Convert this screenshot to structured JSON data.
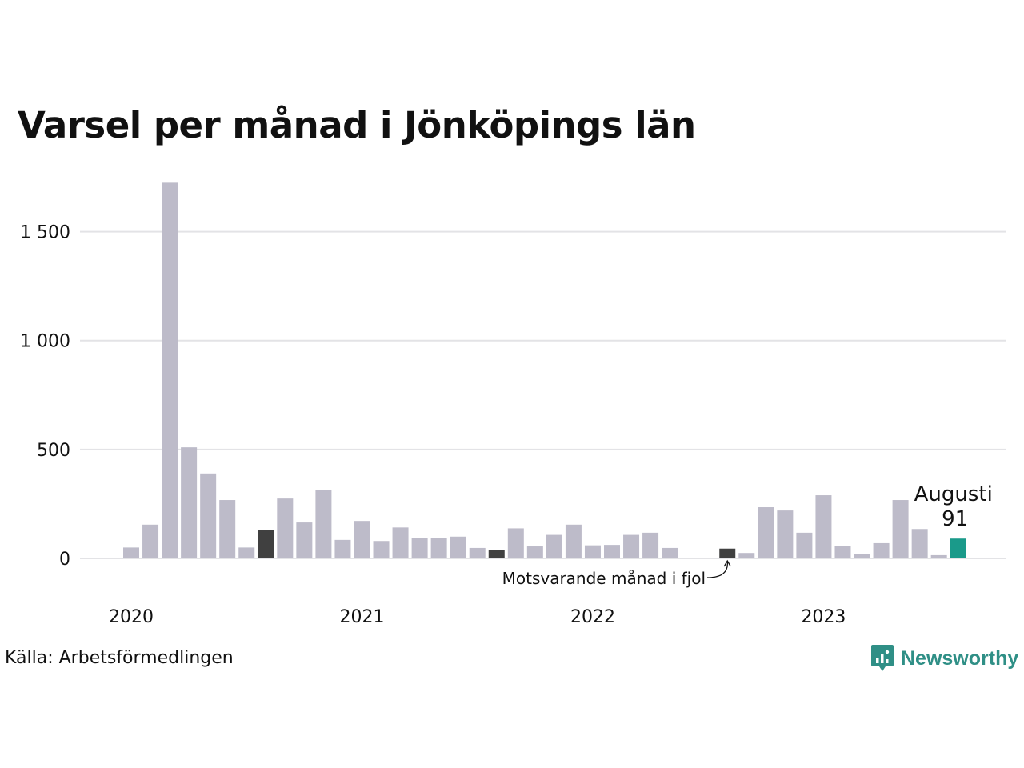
{
  "chart_data": {
    "type": "bar",
    "title": "Varsel per månad i Jönköpings län",
    "source": "Källa: Arbetsförmedlingen",
    "brand": "Newsworthy",
    "ylim": [
      0,
      1730
    ],
    "yticks": [
      {
        "value": 0,
        "label": "0"
      },
      {
        "value": 500,
        "label": "500"
      },
      {
        "value": 1000,
        "label": "1 000"
      },
      {
        "value": 1500,
        "label": "1 500"
      }
    ],
    "xticks": [
      "2020",
      "2021",
      "2022",
      "2023"
    ],
    "start": "2020-01",
    "values": [
      50,
      155,
      1725,
      510,
      390,
      268,
      50,
      132,
      275,
      165,
      315,
      85,
      172,
      80,
      142,
      92,
      92,
      100,
      48,
      37,
      138,
      55,
      108,
      155,
      60,
      62,
      108,
      118,
      48,
      0,
      0,
      45,
      25,
      235,
      220,
      118,
      290,
      58,
      22,
      70,
      268,
      135,
      15,
      91
    ],
    "highlight_prior_year_indices": [
      7,
      19,
      31
    ],
    "current_index": 43,
    "annotations": {
      "current_month_label": "Augusti",
      "current_value_label": "91",
      "prior_year_label": "Motsvarande månad i fjol"
    },
    "colors": {
      "bar": "#bdbbc9",
      "prior_year": "#404040",
      "current": "#1a9a8a",
      "grid": "#e3e3e6",
      "brand": "#2f8f86"
    },
    "grid": true
  }
}
